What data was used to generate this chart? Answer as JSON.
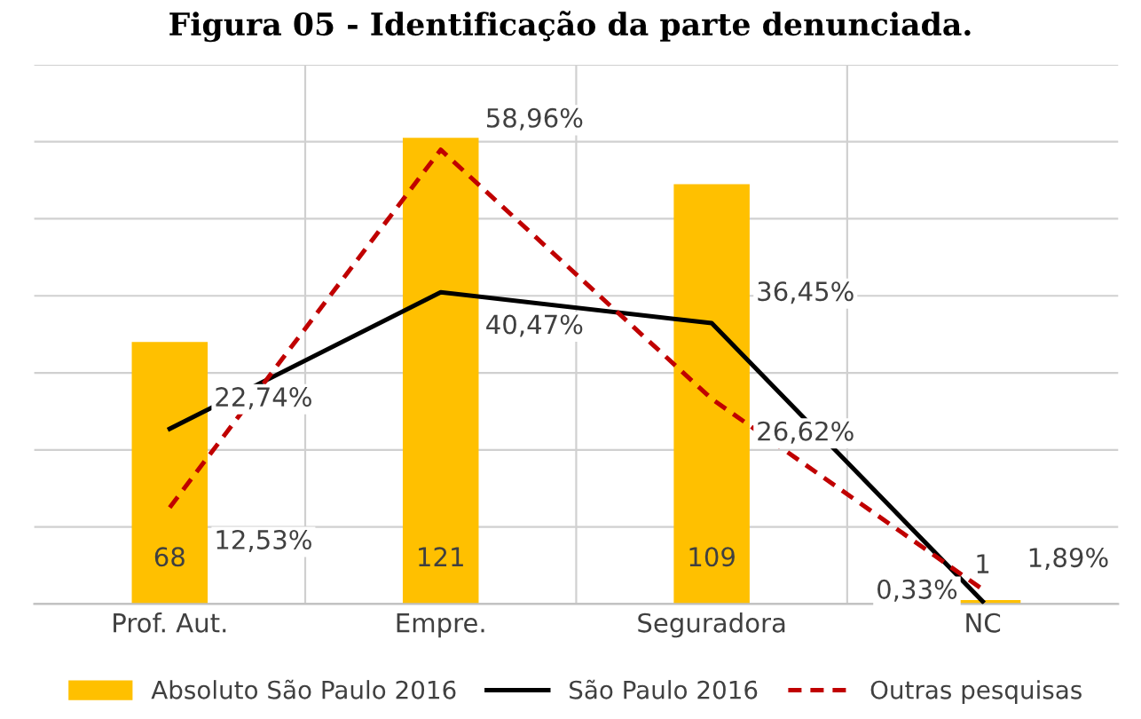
{
  "chart_data": {
    "type": "bar",
    "title": "Figura 05 - Identificação da parte denunciada.",
    "categories": [
      "Prof. Aut.",
      "Empre.",
      "Seguradora",
      "NC"
    ],
    "series": [
      {
        "name": "Absoluto São Paulo 2016",
        "color": "#ffc000",
        "values": [
          68,
          121,
          109,
          1
        ],
        "value_labels": [
          "68",
          "121",
          "109",
          "1"
        ]
      },
      {
        "name": "São Paulo 2016",
        "type": "line",
        "axis": "y2",
        "color": "#000000",
        "line_style": "solid",
        "values": [
          22.74,
          40.47,
          36.45,
          0.33
        ],
        "value_labels": [
          "22,74%",
          "40,47%",
          "36,45%",
          "0,33%"
        ]
      },
      {
        "name": "Outras pesquisas",
        "type": "line",
        "axis": "y2",
        "color": "#c00000",
        "line_style": "dashed",
        "values": [
          12.53,
          58.96,
          26.62,
          1.89
        ],
        "value_labels": [
          "12,53%",
          "58,96%",
          "26,62%",
          "1,89%"
        ]
      }
    ],
    "ylim": [
      0,
      140
    ],
    "yticks": [
      {
        "value": 0,
        "label": null
      },
      {
        "value": 20,
        "label": null
      },
      {
        "value": 40,
        "label": null
      },
      {
        "value": 60,
        "label": null
      },
      {
        "value": 80,
        "label": null
      },
      {
        "value": 100,
        "label": null
      },
      {
        "value": 120,
        "label": null
      },
      {
        "value": 140,
        "label": null
      }
    ],
    "y2lim": [
      0,
      70
    ],
    "tick_labels": "x",
    "grid": true,
    "legend": "bottom",
    "marker": "none"
  }
}
